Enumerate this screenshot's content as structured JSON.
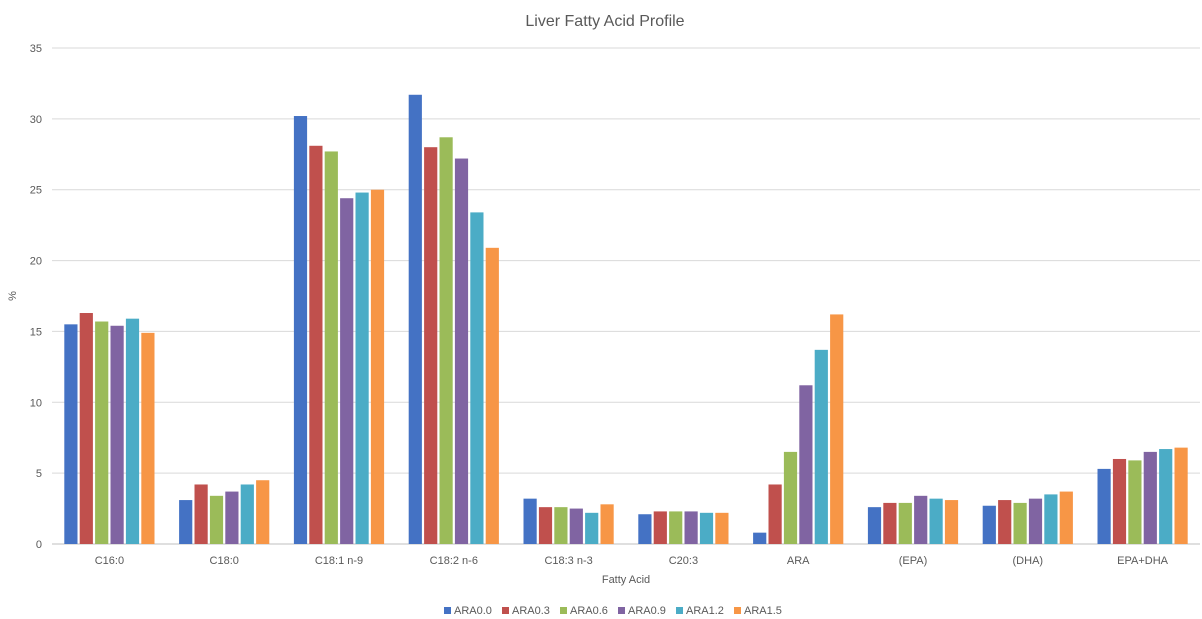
{
  "chart_data": {
    "type": "bar",
    "title": "Liver Fatty Acid Profile",
    "xlabel": "Fatty Acid",
    "ylabel": "%",
    "ylim": [
      0,
      35
    ],
    "yticks": [
      0,
      5,
      10,
      15,
      20,
      25,
      30,
      35
    ],
    "grid": true,
    "legend_position": "bottom",
    "categories": [
      "C16:0",
      "C18:0",
      "C18:1 n-9",
      "C18:2 n-6",
      "C18:3 n-3",
      "C20:3",
      "ARA",
      "(EPA)",
      "(DHA)",
      "EPA+DHA"
    ],
    "series": [
      {
        "name": "ARA0.0",
        "color": "#4472C4",
        "values": [
          15.5,
          3.1,
          30.2,
          31.7,
          3.2,
          2.1,
          0.8,
          2.6,
          2.7,
          5.3
        ]
      },
      {
        "name": "ARA0.3",
        "color": "#C0504D",
        "values": [
          16.3,
          4.2,
          28.1,
          28.0,
          2.6,
          2.3,
          4.2,
          2.9,
          3.1,
          6.0
        ]
      },
      {
        "name": "ARA0.6",
        "color": "#9BBB59",
        "values": [
          15.7,
          3.4,
          27.7,
          28.7,
          2.6,
          2.3,
          6.5,
          2.9,
          2.9,
          5.9
        ]
      },
      {
        "name": "ARA0.9",
        "color": "#8064A2",
        "values": [
          15.4,
          3.7,
          24.4,
          27.2,
          2.5,
          2.3,
          11.2,
          3.4,
          3.2,
          6.5
        ]
      },
      {
        "name": "ARA1.2",
        "color": "#4BACC6",
        "values": [
          15.9,
          4.2,
          24.8,
          23.4,
          2.2,
          2.2,
          13.7,
          3.2,
          3.5,
          6.7
        ]
      },
      {
        "name": "ARA1.5",
        "color": "#F79646",
        "values": [
          14.9,
          4.5,
          25.0,
          20.9,
          2.8,
          2.2,
          16.2,
          3.1,
          3.7,
          6.8
        ]
      }
    ]
  }
}
